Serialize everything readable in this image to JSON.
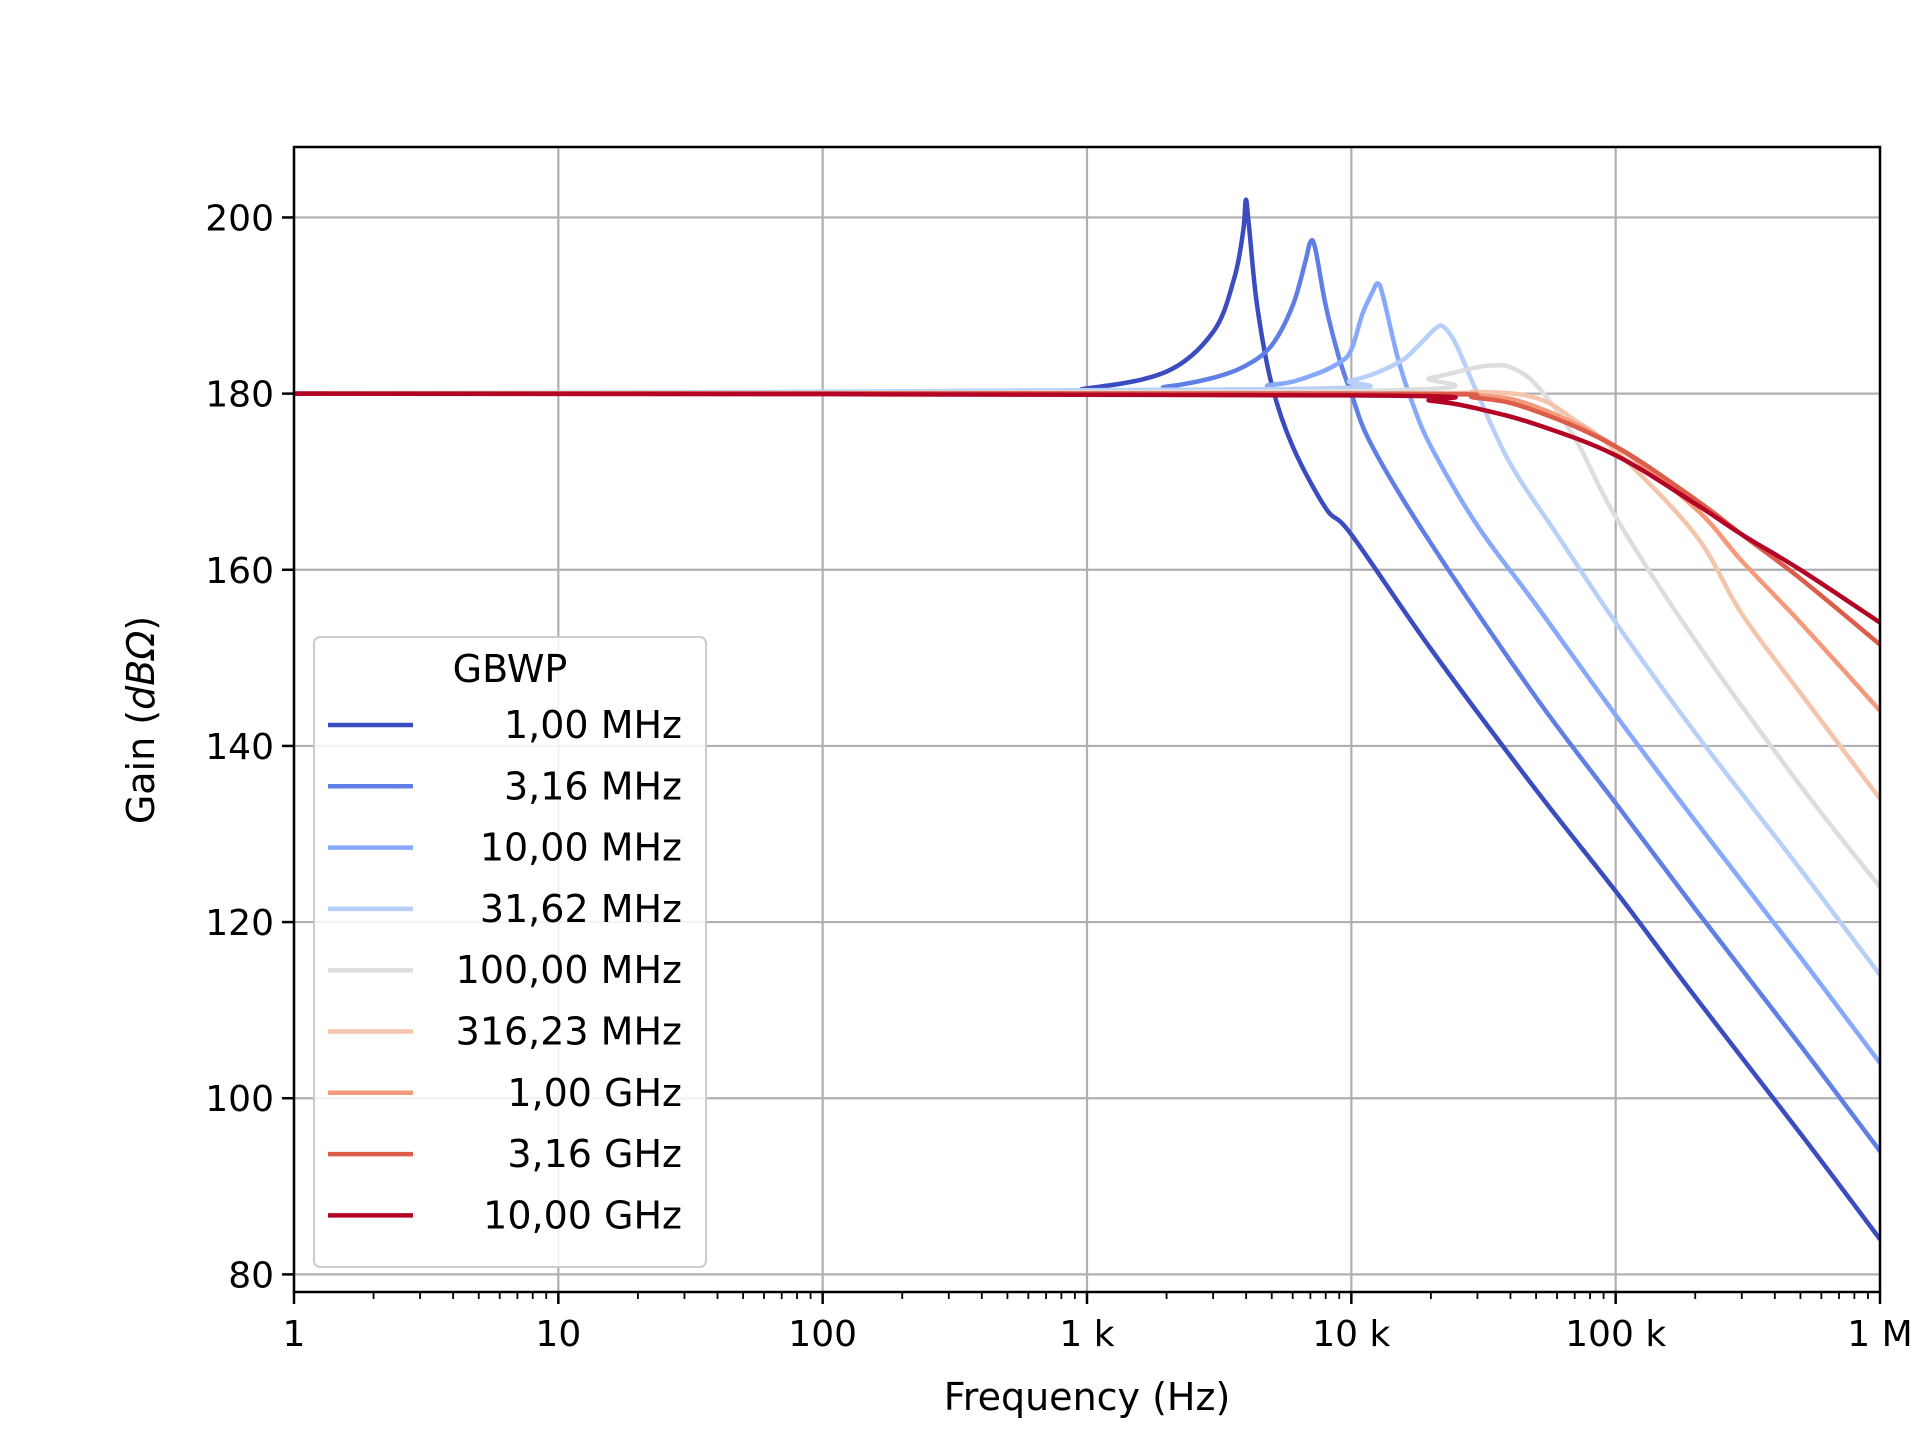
{
  "chart_data": {
    "type": "line",
    "title": "",
    "xlabel": "Frequency (Hz)",
    "ylabel_prefix": "Gain (",
    "ylabel_unit": "dBΩ",
    "ylabel_suffix": ")",
    "x_scale": "log",
    "xlim": [
      1,
      1000000
    ],
    "ylim": [
      78,
      208
    ],
    "grid": true,
    "x_ticks": [
      {
        "value": 1,
        "label": "1"
      },
      {
        "value": 10,
        "label": "10"
      },
      {
        "value": 100,
        "label": "100"
      },
      {
        "value": 1000,
        "label": "1 k"
      },
      {
        "value": 10000,
        "label": "10 k"
      },
      {
        "value": 100000,
        "label": "100 k"
      },
      {
        "value": 1000000,
        "label": "1 M"
      }
    ],
    "y_ticks": [
      {
        "value": 80,
        "label": "80"
      },
      {
        "value": 100,
        "label": "100"
      },
      {
        "value": 120,
        "label": "120"
      },
      {
        "value": 140,
        "label": "140"
      },
      {
        "value": 160,
        "label": "160"
      },
      {
        "value": 180,
        "label": "180"
      },
      {
        "value": 200,
        "label": "200"
      }
    ],
    "legend": {
      "title": "GBWP",
      "position": "lower-left"
    },
    "series": [
      {
        "name": "1,00 MHz",
        "color": "#3b4cc0",
        "points": [
          [
            1,
            180
          ],
          [
            500,
            180.2
          ],
          [
            1000,
            180.6
          ],
          [
            2000,
            182.5
          ],
          [
            3000,
            187
          ],
          [
            3600,
            193
          ],
          [
            3900,
            198.5
          ],
          [
            3990,
            202
          ],
          [
            4100,
            199
          ],
          [
            4400,
            190
          ],
          [
            5000,
            181
          ],
          [
            6000,
            174
          ],
          [
            8000,
            167
          ],
          [
            10000,
            164
          ],
          [
            20000,
            151
          ],
          [
            50000,
            135
          ],
          [
            100000,
            123.5
          ],
          [
            200000,
            111.5
          ],
          [
            500000,
            96
          ],
          [
            1000000,
            84
          ]
        ]
      },
      {
        "name": "3,16 MHz",
        "color": "#5f7fe6",
        "points": [
          [
            1,
            180
          ],
          [
            1000,
            180.2
          ],
          [
            2000,
            180.8
          ],
          [
            3000,
            181.8
          ],
          [
            4000,
            183.2
          ],
          [
            5000,
            185.5
          ],
          [
            6000,
            190
          ],
          [
            6700,
            195
          ],
          [
            7000,
            197.2
          ],
          [
            7300,
            196.5
          ],
          [
            8000,
            190
          ],
          [
            9000,
            184
          ],
          [
            10000,
            180
          ],
          [
            12000,
            174
          ],
          [
            20000,
            163
          ],
          [
            50000,
            145.5
          ],
          [
            100000,
            133.5
          ],
          [
            200000,
            121.5
          ],
          [
            500000,
            106
          ],
          [
            1000000,
            94
          ]
        ]
      },
      {
        "name": "10,00 MHz",
        "color": "#86a9fc",
        "points": [
          [
            1,
            180
          ],
          [
            2000,
            180.3
          ],
          [
            5000,
            181
          ],
          [
            7000,
            182
          ],
          [
            9000,
            183.5
          ],
          [
            10000,
            185
          ],
          [
            11000,
            189
          ],
          [
            12000,
            191.5
          ],
          [
            12600,
            192.5
          ],
          [
            13200,
            191
          ],
          [
            15000,
            184
          ],
          [
            17000,
            179
          ],
          [
            20000,
            174
          ],
          [
            30000,
            165
          ],
          [
            50000,
            156
          ],
          [
            100000,
            143.5
          ],
          [
            200000,
            131.5
          ],
          [
            500000,
            116
          ],
          [
            1000000,
            104
          ]
        ]
      },
      {
        "name": "31,62 MHz",
        "color": "#b7cff9",
        "points": [
          [
            1,
            180
          ],
          [
            5000,
            180.5
          ],
          [
            10000,
            181.5
          ],
          [
            15000,
            183.5
          ],
          [
            18000,
            185.5
          ],
          [
            21000,
            187.5
          ],
          [
            22500,
            187.5
          ],
          [
            25000,
            185.5
          ],
          [
            30000,
            180
          ],
          [
            40000,
            172
          ],
          [
            60000,
            164
          ],
          [
            100000,
            154
          ],
          [
            200000,
            141.5
          ],
          [
            500000,
            126
          ],
          [
            1000000,
            114
          ]
        ]
      },
      {
        "name": "100,00 MHz",
        "color": "#dddddd",
        "points": [
          [
            1,
            180
          ],
          [
            10000,
            180.3
          ],
          [
            20000,
            181.8
          ],
          [
            30000,
            183
          ],
          [
            35000,
            183.2
          ],
          [
            40000,
            183
          ],
          [
            50000,
            181
          ],
          [
            70000,
            175
          ],
          [
            100000,
            166
          ],
          [
            200000,
            152
          ],
          [
            500000,
            135.5
          ],
          [
            1000000,
            124
          ]
        ]
      },
      {
        "name": "316,23 MHz",
        "color": "#f4c4ab",
        "points": [
          [
            1,
            180
          ],
          [
            10000,
            180
          ],
          [
            30000,
            180.2
          ],
          [
            50000,
            179.5
          ],
          [
            70000,
            177
          ],
          [
            100000,
            173.5
          ],
          [
            200000,
            164
          ],
          [
            300000,
            155
          ],
          [
            500000,
            146
          ],
          [
            1000000,
            134
          ]
        ]
      },
      {
        "name": "1,00 GHz",
        "color": "#f49a7b",
        "points": [
          [
            1,
            180
          ],
          [
            10000,
            180
          ],
          [
            30000,
            179.8
          ],
          [
            50000,
            178.5
          ],
          [
            100000,
            174
          ],
          [
            200000,
            167
          ],
          [
            300000,
            161
          ],
          [
            500000,
            154
          ],
          [
            1000000,
            144
          ]
        ]
      },
      {
        "name": "3,16 GHz",
        "color": "#dc5d4a",
        "points": [
          [
            1,
            180
          ],
          [
            10000,
            180
          ],
          [
            30000,
            179.5
          ],
          [
            50000,
            178
          ],
          [
            100000,
            174
          ],
          [
            200000,
            168
          ],
          [
            300000,
            164
          ],
          [
            500000,
            159
          ],
          [
            1000000,
            151.5
          ]
        ]
      },
      {
        "name": "10,00 GHz",
        "color": "#b40426",
        "points": [
          [
            1,
            180
          ],
          [
            10000,
            179.8
          ],
          [
            20000,
            179.2
          ],
          [
            30000,
            178.3
          ],
          [
            50000,
            176.5
          ],
          [
            100000,
            173
          ],
          [
            200000,
            167.5
          ],
          [
            300000,
            164
          ],
          [
            500000,
            160
          ],
          [
            1000000,
            154
          ]
        ]
      }
    ]
  }
}
